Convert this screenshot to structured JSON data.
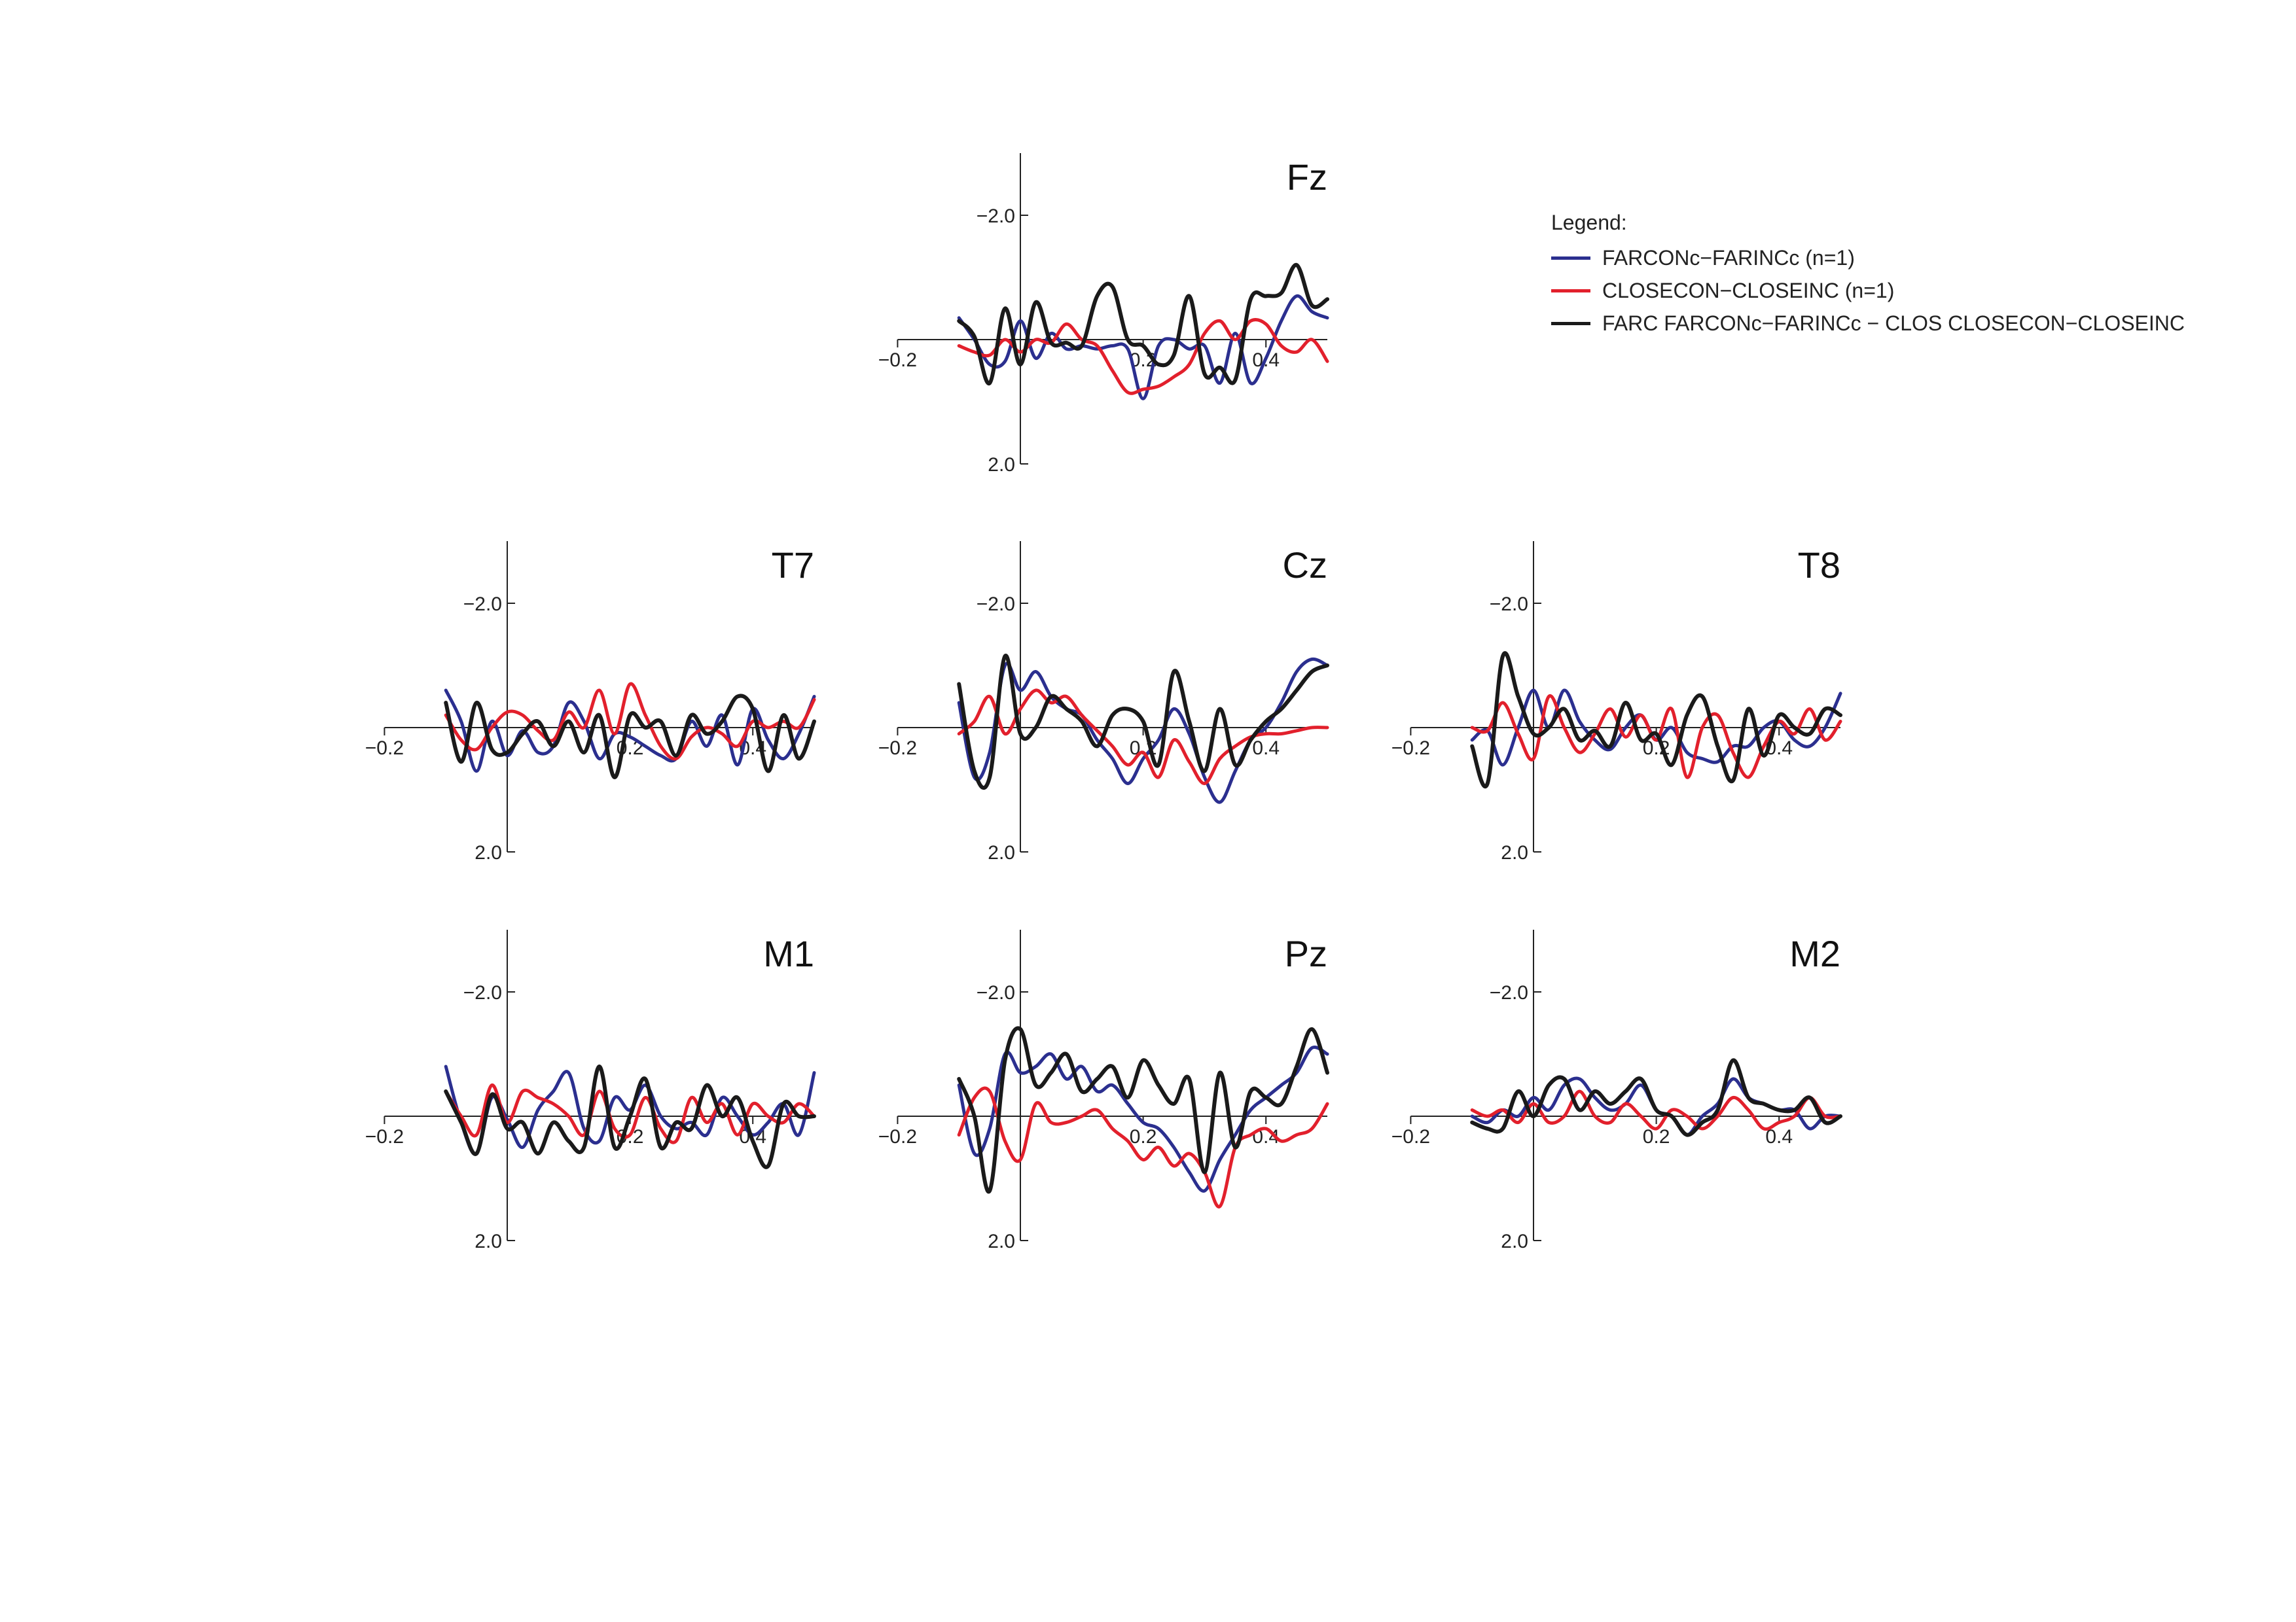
{
  "legend": {
    "title": "Legend:",
    "items": [
      {
        "label": "FARCONc−FARINCc (n=1)",
        "color": "#2b2f8f"
      },
      {
        "label": "CLOSECON−CLOSEINC (n=1)",
        "color": "#e2202c"
      },
      {
        "label": "FARC FARCONc−FARINCc − CLOS CLOSECON−CLOSEINC",
        "color": "#1a1a1a"
      }
    ]
  },
  "chart_data": [
    {
      "type": "line",
      "title": "Fz",
      "xlim": [
        -0.2,
        0.5
      ],
      "ylim": [
        -3.0,
        2.0
      ],
      "y_inverted": true,
      "xticks": [
        -0.2,
        0.2,
        0.4
      ],
      "xtick_labels": [
        "−0.2",
        "0.2",
        "0.4"
      ],
      "yticks": [
        -2.0,
        2.0
      ],
      "ytick_labels": [
        "−2.0",
        "2.0"
      ],
      "x": [
        -0.1,
        -0.075,
        -0.05,
        -0.025,
        0.0,
        0.025,
        0.05,
        0.075,
        0.1,
        0.125,
        0.15,
        0.175,
        0.2,
        0.225,
        0.25,
        0.275,
        0.3,
        0.325,
        0.35,
        0.375,
        0.4,
        0.425,
        0.45,
        0.475,
        0.5
      ],
      "series": [
        {
          "name": "FARCONc−FARINCc (n=1)",
          "values": [
            -0.35,
            0.0,
            0.4,
            0.35,
            -0.3,
            0.3,
            -0.1,
            0.15,
            0.1,
            0.15,
            0.1,
            0.15,
            0.95,
            0.1,
            0.0,
            0.15,
            0.1,
            0.7,
            -0.1,
            0.7,
            0.3,
            -0.3,
            -0.7,
            -0.45,
            -0.35
          ]
        },
        {
          "name": "CLOSECON−CLOSEINC (n=1)",
          "values": [
            0.1,
            0.2,
            0.25,
            0.0,
            0.2,
            0.0,
            0.05,
            -0.25,
            0.0,
            0.1,
            0.5,
            0.85,
            0.8,
            0.75,
            0.6,
            0.4,
            -0.1,
            -0.3,
            0.0,
            -0.3,
            -0.25,
            0.1,
            0.2,
            0.0,
            0.35
          ]
        },
        {
          "name": "FARC FARCONc−FARINCc − CLOS CLOSECON−CLOSEINC",
          "values": [
            -0.3,
            -0.05,
            0.7,
            -0.5,
            0.4,
            -0.6,
            0.05,
            0.05,
            0.1,
            -0.7,
            -0.85,
            0.0,
            0.1,
            0.4,
            0.25,
            -0.7,
            0.55,
            0.45,
            0.65,
            -0.65,
            -0.7,
            -0.75,
            -1.2,
            -0.55,
            -0.65
          ]
        }
      ]
    },
    {
      "type": "line",
      "title": "T7",
      "xlim": [
        -0.2,
        0.5
      ],
      "ylim": [
        -3.0,
        2.0
      ],
      "y_inverted": true,
      "xticks": [
        -0.2,
        0.2,
        0.4
      ],
      "xtick_labels": [
        "−0.2",
        "0.2",
        "0.4"
      ],
      "yticks": [
        -2.0,
        2.0
      ],
      "ytick_labels": [
        "−2.0",
        "2.0"
      ],
      "x": [
        -0.1,
        -0.075,
        -0.05,
        -0.025,
        0.0,
        0.025,
        0.05,
        0.075,
        0.1,
        0.125,
        0.15,
        0.175,
        0.2,
        0.225,
        0.25,
        0.275,
        0.3,
        0.325,
        0.35,
        0.375,
        0.4,
        0.425,
        0.45,
        0.475,
        0.5
      ],
      "series": [
        {
          "name": "FARCONc−FARINCc (n=1)",
          "values": [
            -0.6,
            -0.1,
            0.7,
            -0.1,
            0.45,
            0.05,
            0.4,
            0.3,
            -0.4,
            -0.1,
            0.5,
            0.1,
            0.15,
            0.3,
            0.45,
            0.5,
            -0.1,
            0.3,
            -0.2,
            0.6,
            -0.3,
            0.2,
            0.5,
            0.1,
            -0.5
          ]
        },
        {
          "name": "CLOSECON−CLOSEINC (n=1)",
          "values": [
            -0.2,
            0.2,
            0.35,
            0.0,
            -0.25,
            -0.2,
            0.05,
            0.2,
            -0.25,
            0.0,
            -0.6,
            0.1,
            -0.7,
            -0.2,
            0.3,
            0.5,
            0.15,
            0.0,
            0.1,
            0.3,
            -0.1,
            0.0,
            -0.1,
            0.0,
            -0.45
          ]
        },
        {
          "name": "FARC FARCONc−FARINCc − CLOS CLOSECON−CLOSEINC",
          "values": [
            -0.4,
            0.55,
            -0.4,
            0.35,
            0.4,
            0.1,
            -0.1,
            0.3,
            -0.1,
            0.4,
            -0.2,
            0.8,
            -0.2,
            0.0,
            -0.1,
            0.45,
            -0.2,
            0.1,
            -0.1,
            -0.5,
            -0.3,
            0.7,
            -0.2,
            0.5,
            -0.1
          ]
        }
      ]
    },
    {
      "type": "line",
      "title": "Cz",
      "xlim": [
        -0.2,
        0.5
      ],
      "ylim": [
        -3.0,
        2.0
      ],
      "y_inverted": true,
      "xticks": [
        -0.2,
        0.2,
        0.4
      ],
      "xtick_labels": [
        "−0.2",
        "0.2",
        "0.4"
      ],
      "yticks": [
        -2.0,
        2.0
      ],
      "ytick_labels": [
        "−2.0",
        "2.0"
      ],
      "x": [
        -0.1,
        -0.075,
        -0.05,
        -0.025,
        0.0,
        0.025,
        0.05,
        0.075,
        0.1,
        0.125,
        0.15,
        0.175,
        0.2,
        0.225,
        0.25,
        0.275,
        0.3,
        0.325,
        0.35,
        0.375,
        0.4,
        0.425,
        0.45,
        0.475,
        0.5
      ],
      "series": [
        {
          "name": "FARCONc−FARINCc (n=1)",
          "values": [
            -0.4,
            0.8,
            0.4,
            -1.0,
            -0.6,
            -0.9,
            -0.5,
            -0.3,
            -0.2,
            0.2,
            0.5,
            0.9,
            0.5,
            0.2,
            -0.3,
            0.1,
            0.8,
            1.2,
            0.7,
            0.2,
            0.0,
            -0.4,
            -0.9,
            -1.1,
            -1.0
          ]
        },
        {
          "name": "CLOSECON−CLOSEINC (n=1)",
          "values": [
            0.1,
            -0.1,
            -0.5,
            0.1,
            -0.3,
            -0.6,
            -0.4,
            -0.5,
            -0.2,
            0.05,
            0.3,
            0.6,
            0.4,
            0.8,
            0.2,
            0.55,
            0.9,
            0.5,
            0.3,
            0.15,
            0.1,
            0.1,
            0.05,
            0.0,
            0.0
          ]
        },
        {
          "name": "FARC FARCONc−FARINCc − CLOS CLOSECON−CLOSEINC",
          "values": [
            -0.7,
            0.7,
            0.8,
            -1.15,
            0.1,
            0.0,
            -0.5,
            -0.3,
            -0.1,
            0.3,
            -0.2,
            -0.3,
            -0.1,
            0.6,
            -0.9,
            -0.1,
            0.7,
            -0.3,
            0.6,
            0.2,
            -0.1,
            -0.3,
            -0.6,
            -0.9,
            -1.0
          ]
        }
      ]
    },
    {
      "type": "line",
      "title": "T8",
      "xlim": [
        -0.2,
        0.5
      ],
      "ylim": [
        -3.0,
        2.0
      ],
      "y_inverted": true,
      "xticks": [
        -0.2,
        0.2,
        0.4
      ],
      "xtick_labels": [
        "−0.2",
        "0.2",
        "0.4"
      ],
      "yticks": [
        -2.0,
        2.0
      ],
      "ytick_labels": [
        "−2.0",
        "2.0"
      ],
      "x": [
        -0.1,
        -0.075,
        -0.05,
        -0.025,
        0.0,
        0.025,
        0.05,
        0.075,
        0.1,
        0.125,
        0.15,
        0.175,
        0.2,
        0.225,
        0.25,
        0.275,
        0.3,
        0.325,
        0.35,
        0.375,
        0.4,
        0.425,
        0.45,
        0.475,
        0.5
      ],
      "series": [
        {
          "name": "FARCONc−FARINCc (n=1)",
          "values": [
            0.2,
            0.05,
            0.6,
            0.0,
            -0.6,
            0.0,
            -0.6,
            -0.1,
            0.2,
            0.35,
            0.0,
            -0.2,
            0.2,
            0.0,
            0.4,
            0.5,
            0.55,
            0.3,
            0.3,
            0.0,
            -0.1,
            0.2,
            0.3,
            0.0,
            -0.55
          ]
        },
        {
          "name": "CLOSECON−CLOSEINC (n=1)",
          "values": [
            0.0,
            0.05,
            -0.4,
            0.1,
            0.5,
            -0.5,
            0.0,
            0.4,
            0.1,
            -0.3,
            0.15,
            -0.2,
            0.2,
            -0.3,
            0.8,
            0.0,
            -0.2,
            0.4,
            0.8,
            0.3,
            -0.1,
            0.1,
            -0.3,
            0.2,
            -0.1
          ]
        },
        {
          "name": "FARC FARCONc−FARINCc − CLOS CLOSECON−CLOSEINC",
          "values": [
            0.3,
            0.9,
            -1.15,
            -0.5,
            0.1,
            0.0,
            -0.3,
            0.2,
            0.05,
            0.3,
            -0.4,
            0.2,
            0.1,
            0.6,
            -0.2,
            -0.5,
            0.3,
            0.85,
            -0.3,
            0.45,
            -0.2,
            0.0,
            0.1,
            -0.3,
            -0.2
          ]
        }
      ]
    },
    {
      "type": "line",
      "title": "M1",
      "xlim": [
        -0.2,
        0.5
      ],
      "ylim": [
        -3.0,
        2.0
      ],
      "y_inverted": true,
      "xticks": [
        -0.2,
        0.2,
        0.4
      ],
      "xtick_labels": [
        "−0.2",
        "0.2",
        "0.4"
      ],
      "yticks": [
        -2.0,
        2.0
      ],
      "ytick_labels": [
        "−2.0",
        "2.0"
      ],
      "x": [
        -0.1,
        -0.075,
        -0.05,
        -0.025,
        0.0,
        0.025,
        0.05,
        0.075,
        0.1,
        0.125,
        0.15,
        0.175,
        0.2,
        0.225,
        0.25,
        0.275,
        0.3,
        0.325,
        0.35,
        0.375,
        0.4,
        0.425,
        0.45,
        0.475,
        0.5
      ],
      "series": [
        {
          "name": "FARCONc−FARINCc (n=1)",
          "values": [
            -0.8,
            0.1,
            0.6,
            -0.3,
            0.05,
            0.5,
            -0.1,
            -0.4,
            -0.7,
            0.2,
            0.4,
            -0.3,
            -0.1,
            -0.5,
            0.0,
            0.2,
            0.1,
            0.3,
            -0.3,
            0.0,
            0.3,
            0.1,
            -0.2,
            0.3,
            -0.7
          ]
        },
        {
          "name": "CLOSECON−CLOSEINC (n=1)",
          "values": [
            -0.4,
            0.0,
            0.3,
            -0.5,
            0.1,
            -0.4,
            -0.3,
            -0.2,
            0.0,
            0.3,
            -0.4,
            0.2,
            0.3,
            -0.3,
            0.2,
            0.4,
            -0.3,
            0.1,
            -0.2,
            0.3,
            -0.2,
            0.0,
            0.1,
            -0.2,
            0.0
          ]
        },
        {
          "name": "FARC FARCONc−FARINCc − CLOS CLOSECON−CLOSEINC",
          "values": [
            -0.4,
            0.1,
            0.6,
            -0.35,
            0.2,
            0.1,
            0.6,
            0.1,
            0.4,
            0.5,
            -0.8,
            0.5,
            0.0,
            -0.6,
            0.5,
            0.1,
            0.2,
            -0.5,
            0.0,
            -0.3,
            0.4,
            0.8,
            -0.2,
            0.0,
            0.0
          ]
        }
      ]
    },
    {
      "type": "line",
      "title": "Pz",
      "xlim": [
        -0.2,
        0.5
      ],
      "ylim": [
        -3.0,
        2.0
      ],
      "y_inverted": true,
      "xticks": [
        -0.2,
        0.2,
        0.4
      ],
      "xtick_labels": [
        "−0.2",
        "0.2",
        "0.4"
      ],
      "yticks": [
        -2.0,
        2.0
      ],
      "ytick_labels": [
        "−2.0",
        "2.0"
      ],
      "x": [
        -0.1,
        -0.075,
        -0.05,
        -0.025,
        0.0,
        0.025,
        0.05,
        0.075,
        0.1,
        0.125,
        0.15,
        0.175,
        0.2,
        0.225,
        0.25,
        0.275,
        0.3,
        0.325,
        0.35,
        0.375,
        0.4,
        0.425,
        0.45,
        0.475,
        0.5
      ],
      "series": [
        {
          "name": "FARCONc−FARINCc (n=1)",
          "values": [
            -0.5,
            0.6,
            0.2,
            -1.0,
            -0.7,
            -0.8,
            -1.0,
            -0.6,
            -0.8,
            -0.4,
            -0.5,
            -0.2,
            0.1,
            0.2,
            0.5,
            0.9,
            1.2,
            0.7,
            0.3,
            -0.1,
            -0.3,
            -0.5,
            -0.7,
            -1.1,
            -1.0
          ]
        },
        {
          "name": "CLOSECON−CLOSEINC (n=1)",
          "values": [
            0.3,
            -0.3,
            -0.4,
            0.4,
            0.7,
            -0.2,
            0.1,
            0.1,
            0.0,
            -0.1,
            0.2,
            0.4,
            0.7,
            0.5,
            0.8,
            0.6,
            0.9,
            1.45,
            0.5,
            0.3,
            0.2,
            0.4,
            0.3,
            0.2,
            -0.2
          ]
        },
        {
          "name": "FARC FARCONc−FARINCc − CLOS CLOSECON−CLOSEINC",
          "values": [
            -0.6,
            0.0,
            1.2,
            -0.9,
            -1.4,
            -0.5,
            -0.7,
            -1.0,
            -0.4,
            -0.6,
            -0.8,
            -0.3,
            -0.9,
            -0.5,
            -0.2,
            -0.6,
            0.9,
            -0.7,
            0.5,
            -0.4,
            -0.3,
            -0.2,
            -0.8,
            -1.4,
            -0.7
          ]
        }
      ]
    },
    {
      "type": "line",
      "title": "M2",
      "xlim": [
        -0.2,
        0.5
      ],
      "ylim": [
        -3.0,
        2.0
      ],
      "y_inverted": true,
      "xticks": [
        -0.2,
        0.2,
        0.4
      ],
      "xtick_labels": [
        "−0.2",
        "0.2",
        "0.4"
      ],
      "yticks": [
        -2.0,
        2.0
      ],
      "ytick_labels": [
        "−2.0",
        "2.0"
      ],
      "x": [
        -0.1,
        -0.075,
        -0.05,
        -0.025,
        0.0,
        0.025,
        0.05,
        0.075,
        0.1,
        0.125,
        0.15,
        0.175,
        0.2,
        0.225,
        0.25,
        0.275,
        0.3,
        0.325,
        0.35,
        0.375,
        0.4,
        0.425,
        0.45,
        0.475,
        0.5
      ],
      "series": [
        {
          "name": "FARCONc−FARINCc (n=1)",
          "values": [
            0.0,
            0.1,
            -0.1,
            0.0,
            -0.3,
            -0.1,
            -0.5,
            -0.6,
            -0.3,
            -0.1,
            -0.2,
            -0.5,
            -0.1,
            0.0,
            0.3,
            0.0,
            -0.2,
            -0.6,
            -0.3,
            -0.2,
            -0.1,
            -0.1,
            0.2,
            0.0,
            0.0
          ]
        },
        {
          "name": "CLOSECON−CLOSEINC (n=1)",
          "values": [
            -0.1,
            0.0,
            -0.1,
            0.1,
            -0.2,
            0.1,
            0.0,
            -0.4,
            0.0,
            0.1,
            -0.2,
            0.0,
            0.2,
            -0.1,
            0.0,
            0.2,
            0.0,
            -0.3,
            -0.1,
            0.2,
            0.1,
            0.0,
            -0.3,
            0.0,
            0.0
          ]
        },
        {
          "name": "FARC FARCONc−FARINCc − CLOS CLOSECON−CLOSEINC",
          "values": [
            0.1,
            0.2,
            0.2,
            -0.4,
            0.0,
            -0.5,
            -0.6,
            -0.1,
            -0.4,
            -0.2,
            -0.4,
            -0.6,
            -0.1,
            0.0,
            0.3,
            0.1,
            -0.1,
            -0.9,
            -0.3,
            -0.2,
            -0.1,
            -0.1,
            -0.3,
            0.1,
            0.0
          ]
        }
      ]
    }
  ]
}
